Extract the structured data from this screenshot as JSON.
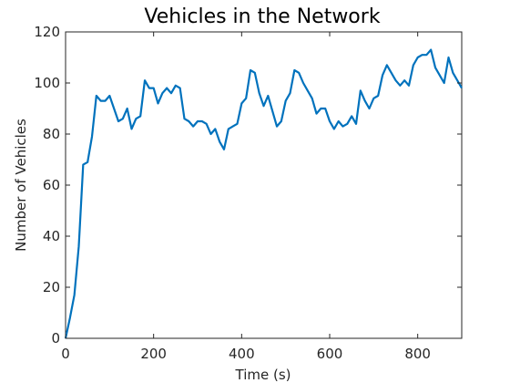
{
  "chart_data": {
    "type": "line",
    "title": "Vehicles in the Network",
    "xlabel": "Time (s)",
    "ylabel": "Number of Vehicles",
    "xlim": [
      0,
      900
    ],
    "ylim": [
      0,
      120
    ],
    "xticks": [
      0,
      200,
      400,
      600,
      800
    ],
    "yticks": [
      0,
      20,
      40,
      60,
      80,
      100,
      120
    ],
    "grid": false,
    "series": [
      {
        "color": "#0072BD",
        "x": [
          0,
          10,
          20,
          30,
          40,
          50,
          60,
          70,
          80,
          90,
          100,
          110,
          120,
          130,
          140,
          150,
          160,
          170,
          180,
          190,
          200,
          210,
          220,
          230,
          240,
          250,
          260,
          270,
          280,
          290,
          300,
          310,
          320,
          330,
          340,
          350,
          360,
          370,
          380,
          390,
          400,
          410,
          420,
          430,
          440,
          450,
          460,
          470,
          480,
          490,
          500,
          510,
          520,
          530,
          540,
          550,
          560,
          570,
          580,
          590,
          600,
          610,
          620,
          630,
          640,
          650,
          660,
          670,
          680,
          690,
          700,
          710,
          720,
          730,
          740,
          750,
          760,
          770,
          780,
          790,
          800,
          810,
          820,
          830,
          840,
          850,
          860,
          870,
          880,
          890,
          900
        ],
        "y": [
          0,
          8,
          17,
          36,
          68,
          69,
          79,
          95,
          93,
          93,
          95,
          90,
          85,
          86,
          90,
          82,
          86,
          87,
          101,
          98,
          98,
          92,
          96,
          98,
          96,
          99,
          98,
          86,
          85,
          83,
          85,
          85,
          84,
          80,
          82,
          77,
          74,
          82,
          83,
          84,
          92,
          94,
          105,
          104,
          96,
          91,
          95,
          89,
          83,
          85,
          93,
          96,
          105,
          104,
          100,
          97,
          94,
          88,
          90,
          90,
          85,
          82,
          85,
          83,
          84,
          87,
          84,
          97,
          93,
          90,
          94,
          95,
          103,
          107,
          104,
          101,
          99,
          101,
          99,
          107,
          110,
          111,
          111,
          113,
          106,
          103,
          100,
          110,
          104,
          101,
          98
        ]
      }
    ]
  }
}
